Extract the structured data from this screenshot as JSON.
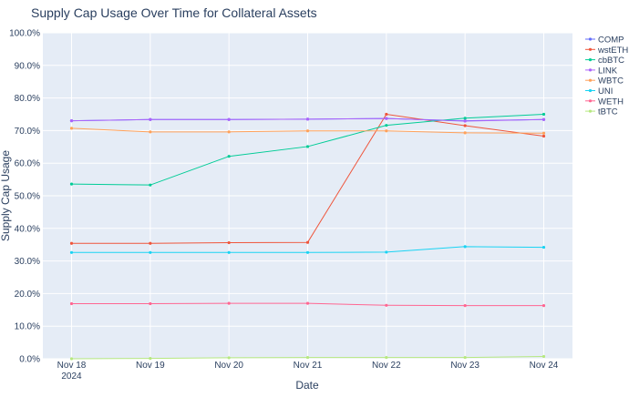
{
  "chart_data": {
    "type": "line",
    "title": "Supply Cap Usage Over Time for Collateral Assets",
    "xlabel": "Date",
    "ylabel": "Supply Cap Usage",
    "categories": [
      "Nov 18",
      "Nov 19",
      "Nov 20",
      "Nov 21",
      "Nov 22",
      "Nov 23",
      "Nov 24"
    ],
    "year_label": "2024",
    "y_ticks": [
      "0.0%",
      "10.0%",
      "20.0%",
      "30.0%",
      "40.0%",
      "50.0%",
      "60.0%",
      "70.0%",
      "80.0%",
      "90.0%",
      "100.0%"
    ],
    "ylim": [
      0,
      100
    ],
    "grid": true,
    "legend_position": "right",
    "plot_background": "#E5ECF6",
    "series": [
      {
        "name": "COMP",
        "color": "#636EFA",
        "values": [
          73.0,
          73.4,
          73.4,
          73.5,
          73.7,
          73.0,
          73.4
        ]
      },
      {
        "name": "wstETH",
        "color": "#EF553B",
        "values": [
          35.4,
          35.4,
          35.6,
          35.7,
          75.0,
          71.5,
          68.3
        ]
      },
      {
        "name": "cbBTC",
        "color": "#00CC96",
        "values": [
          53.6,
          53.3,
          62.1,
          65.1,
          71.6,
          73.8,
          75.0
        ]
      },
      {
        "name": "LINK",
        "color": "#AB63FA",
        "values": [
          73.0,
          73.4,
          73.4,
          73.5,
          73.7,
          72.9,
          73.4
        ]
      },
      {
        "name": "WBTC",
        "color": "#FFA15A",
        "values": [
          70.7,
          69.6,
          69.6,
          69.9,
          69.9,
          69.3,
          69.2
        ]
      },
      {
        "name": "UNI",
        "color": "#19D3F3",
        "values": [
          32.6,
          32.6,
          32.6,
          32.6,
          32.7,
          34.4,
          34.2
        ]
      },
      {
        "name": "WETH",
        "color": "#FF6692",
        "values": [
          16.9,
          16.9,
          17.0,
          17.0,
          16.4,
          16.3,
          16.3
        ]
      },
      {
        "name": "tBTC",
        "color": "#B6E880",
        "values": [
          0.0,
          0.1,
          0.3,
          0.4,
          0.4,
          0.4,
          0.7
        ]
      }
    ]
  }
}
